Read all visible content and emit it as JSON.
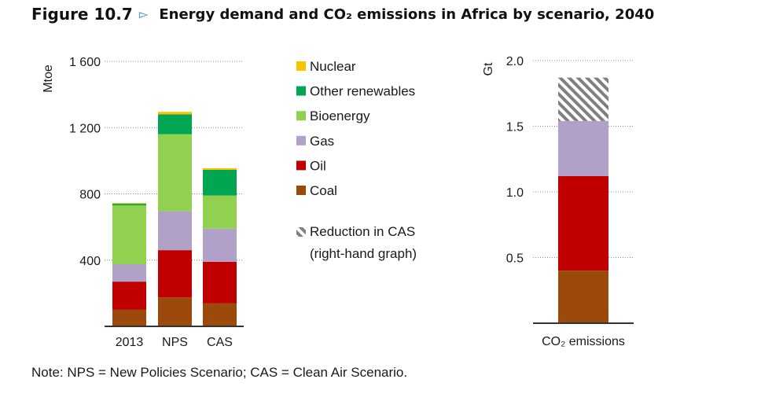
{
  "figure": {
    "number": "Figure 10.7",
    "arrow": "▻",
    "title": "Energy demand and CO₂ emissions in Africa by scenario, 2040"
  },
  "note": "Note: NPS = New Policies Scenario; CAS = Clean Air Scenario.",
  "colors": {
    "Nuclear": "#f5c400",
    "Other renewables": "#00a651",
    "Bioenergy": "#92d050",
    "Gas": "#b1a0c7",
    "Oil": "#c00000",
    "Coal": "#9c4a0c",
    "Reduction in CAS": "#7f7f7f"
  },
  "legend": {
    "items": [
      "Nuclear",
      "Other renewables",
      "Bioenergy",
      "Gas",
      "Oil",
      "Coal"
    ],
    "reduction_line1": "Reduction in CAS",
    "reduction_line2": "(right-hand graph)"
  },
  "chart_data": [
    {
      "type": "bar",
      "stacked": true,
      "title": "",
      "ylabel": "Mtoe",
      "xlabel": "",
      "ylim": [
        0,
        1600
      ],
      "yticks": [
        400,
        800,
        1200,
        1600
      ],
      "ytick_labels": [
        "400",
        "800",
        "1 200",
        "1 600"
      ],
      "grid": "dotted horizontal",
      "categories": [
        "2013",
        "NPS",
        "CAS"
      ],
      "series": [
        {
          "name": "Coal",
          "values": [
            100,
            175,
            140
          ]
        },
        {
          "name": "Oil",
          "values": [
            170,
            285,
            250
          ]
        },
        {
          "name": "Gas",
          "values": [
            105,
            235,
            200
          ]
        },
        {
          "name": "Bioenergy",
          "values": [
            355,
            465,
            200
          ]
        },
        {
          "name": "Other renewables",
          "values": [
            10,
            120,
            155
          ]
        },
        {
          "name": "Nuclear",
          "values": [
            5,
            15,
            10
          ]
        }
      ]
    },
    {
      "type": "bar",
      "stacked": true,
      "title": "",
      "ylabel": "Gt",
      "xlabel": "",
      "ylim": [
        0,
        2.0
      ],
      "yticks": [
        0.5,
        1.0,
        1.5,
        2.0
      ],
      "ytick_labels": [
        "0.5",
        "1.0",
        "1.5",
        "2.0"
      ],
      "grid": "dotted horizontal",
      "categories": [
        "CO₂ emissions"
      ],
      "series": [
        {
          "name": "Coal",
          "values": [
            0.4
          ]
        },
        {
          "name": "Oil",
          "values": [
            0.72
          ]
        },
        {
          "name": "Gas",
          "values": [
            0.42
          ]
        },
        {
          "name": "Reduction in CAS",
          "values": [
            0.33
          ]
        }
      ]
    }
  ]
}
